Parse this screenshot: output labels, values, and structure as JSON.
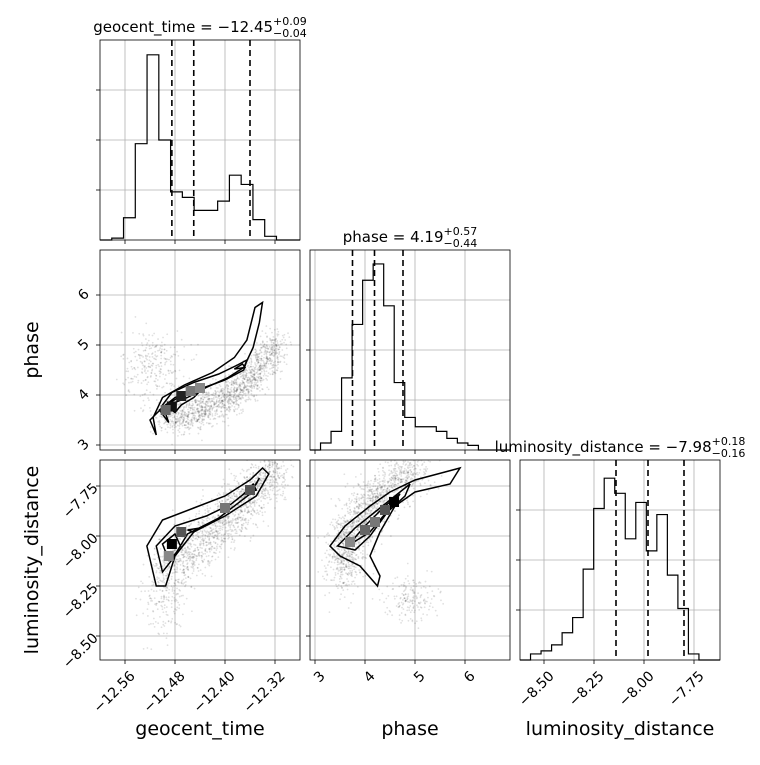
{
  "chart_data": {
    "type": "corner",
    "parameters": [
      {
        "name": "geocent_time",
        "label": "geocent_time",
        "title": {
          "base": "geocent_time = −12.45",
          "plus": "+0.09",
          "minus": "−0.04"
        },
        "range": [
          -12.6,
          -12.28
        ],
        "ticks": [
          -12.56,
          -12.48,
          -12.4,
          -12.32
        ],
        "tick_labels": [
          "−12.56",
          "−12.48",
          "−12.40",
          "−12.32"
        ],
        "quantiles": [
          -12.485,
          -12.45,
          -12.36
        ],
        "hist_bins": 17,
        "hist_counts": [
          0,
          1,
          12,
          52,
          100,
          54,
          26,
          23,
          16,
          16,
          21,
          35,
          30,
          11,
          2,
          0,
          0
        ],
        "hist_ylim": [
          0,
          108
        ]
      },
      {
        "name": "phase",
        "label": "phase",
        "title": {
          "base": "phase = 4.19",
          "plus": "+0.57",
          "minus": "−0.44"
        },
        "range": [
          2.9,
          6.9
        ],
        "ticks": [
          3,
          4,
          5,
          6
        ],
        "tick_labels": [
          "3",
          "4",
          "5",
          "6"
        ],
        "quantiles": [
          3.75,
          4.19,
          4.76
        ],
        "hist_bins": 19,
        "hist_counts": [
          0,
          3,
          8,
          31,
          54,
          73,
          80,
          62,
          29,
          14,
          10,
          10,
          8,
          5,
          3,
          2,
          0,
          0,
          0
        ],
        "hist_ylim": [
          0,
          86
        ]
      },
      {
        "name": "luminosity_distance",
        "label": "luminosity_distance",
        "title": {
          "base": "luminosity_distance = −7.98",
          "plus": "+0.18",
          "minus": "−0.16"
        },
        "range": [
          -8.62,
          -7.62
        ],
        "ticks": [
          -8.5,
          -8.25,
          -8.0,
          -7.75
        ],
        "tick_labels": [
          "−8.50",
          "−8.25",
          "−8.00",
          "−7.75"
        ],
        "quantiles": [
          -8.14,
          -7.98,
          -7.8
        ],
        "hist_bins": 19,
        "hist_counts": [
          0,
          2,
          3,
          5,
          9,
          14,
          30,
          50,
          60,
          55,
          40,
          52,
          36,
          48,
          28,
          17,
          2,
          0,
          0
        ],
        "hist_ylim": [
          0,
          66
        ]
      }
    ],
    "grid": true
  }
}
